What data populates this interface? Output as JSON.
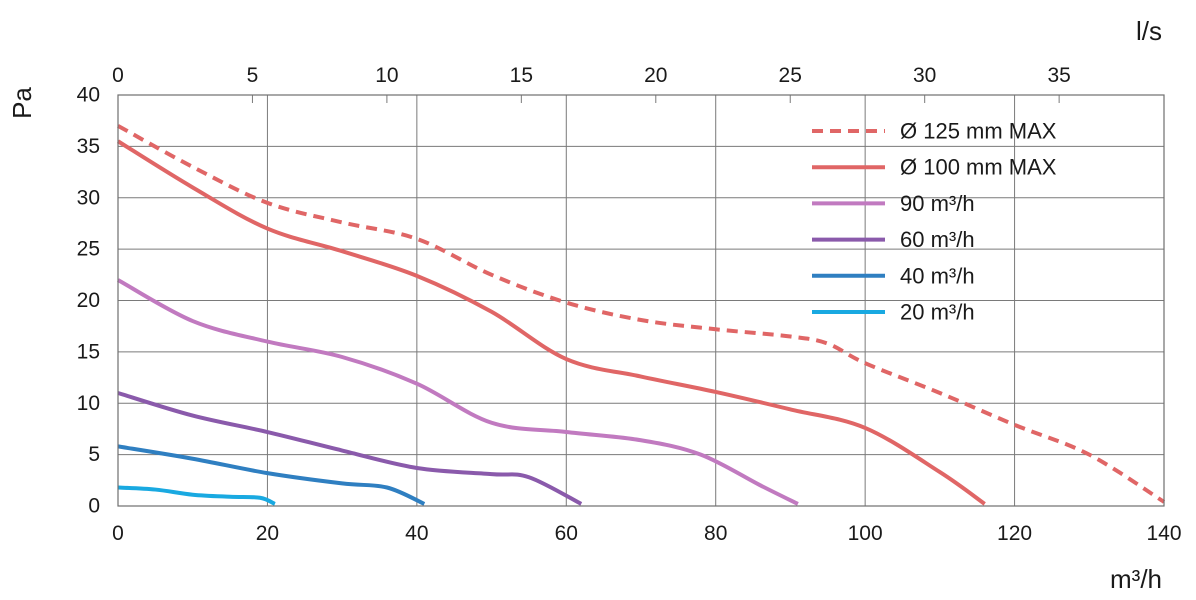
{
  "chart_data": {
    "type": "line",
    "title": "",
    "xlabel": "m³/h",
    "ylabel": "Pa",
    "x2label": "l/s",
    "xlim": [
      0,
      140
    ],
    "ylim": [
      0,
      40
    ],
    "x2lim": [
      0,
      38.9
    ],
    "grid": true,
    "legend_position": "top-right",
    "x_ticks": [
      "0",
      "20",
      "40",
      "60",
      "80",
      "100",
      "120",
      "140"
    ],
    "y_ticks": [
      "0",
      "5",
      "10",
      "15",
      "20",
      "25",
      "30",
      "35",
      "40"
    ],
    "x2_ticks": [
      "0",
      "5",
      "10",
      "15",
      "20",
      "25",
      "30",
      "35"
    ],
    "series": [
      {
        "name": "Ø 125 mm MAX",
        "color": "#e06666",
        "dashed": true,
        "points": [
          [
            0,
            37
          ],
          [
            10,
            33
          ],
          [
            20,
            29.5
          ],
          [
            30,
            27.6
          ],
          [
            40,
            26
          ],
          [
            50,
            22.5
          ],
          [
            60,
            19.8
          ],
          [
            70,
            18.1
          ],
          [
            80,
            17.2
          ],
          [
            90,
            16.5
          ],
          [
            95,
            15.8
          ],
          [
            100,
            13.9
          ],
          [
            110,
            11
          ],
          [
            120,
            7.9
          ],
          [
            130,
            5
          ],
          [
            140,
            0.4
          ]
        ]
      },
      {
        "name": "Ø 100 mm MAX",
        "color": "#e06666",
        "dashed": false,
        "points": [
          [
            0,
            35.5
          ],
          [
            10,
            31
          ],
          [
            20,
            27
          ],
          [
            30,
            24.8
          ],
          [
            40,
            22.4
          ],
          [
            50,
            18.9
          ],
          [
            60,
            14.3
          ],
          [
            70,
            12.6
          ],
          [
            80,
            11.1
          ],
          [
            90,
            9.4
          ],
          [
            100,
            7.6
          ],
          [
            110,
            3.3
          ],
          [
            116,
            0.2
          ]
        ]
      },
      {
        "name": "90 m³/h",
        "color": "#c17ac0",
        "dashed": false,
        "points": [
          [
            0,
            22
          ],
          [
            10,
            18
          ],
          [
            20,
            16
          ],
          [
            30,
            14.5
          ],
          [
            40,
            11.9
          ],
          [
            50,
            8.1
          ],
          [
            60,
            7.2
          ],
          [
            70,
            6.4
          ],
          [
            78,
            5
          ],
          [
            86,
            2
          ],
          [
            91,
            0.2
          ]
        ]
      },
      {
        "name": "60 m³/h",
        "color": "#8a5aab",
        "dashed": false,
        "points": [
          [
            0,
            11
          ],
          [
            10,
            8.8
          ],
          [
            20,
            7.2
          ],
          [
            30,
            5.4
          ],
          [
            40,
            3.7
          ],
          [
            50,
            3.1
          ],
          [
            55,
            2.8
          ],
          [
            62,
            0.2
          ]
        ]
      },
      {
        "name": "40 m³/h",
        "color": "#2f7fc1",
        "dashed": false,
        "points": [
          [
            0,
            5.8
          ],
          [
            10,
            4.6
          ],
          [
            20,
            3.2
          ],
          [
            30,
            2.2
          ],
          [
            36,
            1.8
          ],
          [
            41,
            0.2
          ]
        ]
      },
      {
        "name": "20 m³/h",
        "color": "#19a9e1",
        "dashed": false,
        "points": [
          [
            0,
            1.8
          ],
          [
            5,
            1.6
          ],
          [
            10,
            1.1
          ],
          [
            15,
            0.9
          ],
          [
            19,
            0.8
          ],
          [
            21,
            0.2
          ]
        ]
      }
    ]
  }
}
